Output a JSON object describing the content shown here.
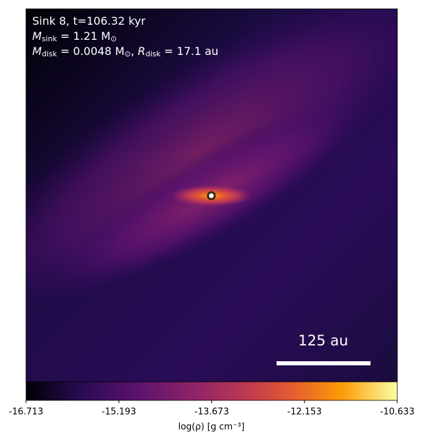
{
  "chart_data": {
    "type": "image",
    "annotation": [
      {
        "text": "Sink 8, t=106.32 kyr"
      },
      {
        "symbol": "M",
        "subscript": "sink",
        "rest": " = 1.21 M",
        "unit_subscript": "⊙"
      },
      {
        "symbol": "M",
        "subscript": "disk",
        "rest": " = 0.0048 M",
        "unit_subscript": "⊙",
        "sep": ", ",
        "symbol2": "R",
        "subscript2": "disk",
        "rest2": " = 17.1 au"
      }
    ],
    "scale_bar": "125 au",
    "colorbar": {
      "label": "log(ρ) [g cm⁻³]",
      "lim": [
        -16.713,
        -10.633
      ],
      "ticks": [
        -16.713,
        -15.193,
        -13.673,
        -12.153,
        -10.633
      ],
      "colormap": "inferno"
    }
  }
}
